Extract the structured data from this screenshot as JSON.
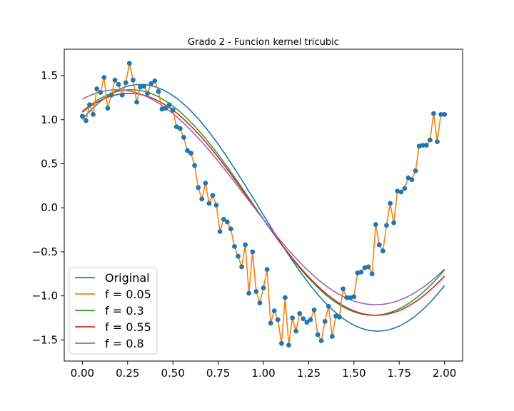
{
  "chart_data": {
    "type": "line",
    "title": "Grado 2 - Funcion kernel tricubic",
    "xlabel": "",
    "ylabel": "",
    "xlim": [
      -0.1,
      2.1
    ],
    "ylim": [
      -1.74,
      1.8
    ],
    "xticks": [
      {
        "value": 0.0,
        "label": "0.00"
      },
      {
        "value": 0.25,
        "label": "0.25"
      },
      {
        "value": 0.5,
        "label": "0.50"
      },
      {
        "value": 0.75,
        "label": "0.75"
      },
      {
        "value": 1.0,
        "label": "1.00"
      },
      {
        "value": 1.25,
        "label": "1.25"
      },
      {
        "value": 1.5,
        "label": "1.50"
      },
      {
        "value": 1.75,
        "label": "1.75"
      },
      {
        "value": 2.0,
        "label": "2.00"
      }
    ],
    "yticks": [
      {
        "value": -1.5,
        "label": "−1.5"
      },
      {
        "value": -1.0,
        "label": "−1.0"
      },
      {
        "value": -0.5,
        "label": "−0.5"
      },
      {
        "value": 0.0,
        "label": "0.0"
      },
      {
        "value": 0.5,
        "label": "0.5"
      },
      {
        "value": 1.0,
        "label": "1.0"
      },
      {
        "value": 1.5,
        "label": "1.5"
      }
    ],
    "grid": false,
    "legend_position": "lower-left",
    "x": [
      0.0,
      0.02,
      0.04,
      0.06,
      0.08,
      0.1,
      0.12,
      0.14,
      0.16,
      0.18,
      0.2,
      0.22,
      0.24,
      0.26,
      0.28,
      0.3,
      0.32,
      0.34,
      0.36,
      0.38,
      0.4,
      0.42,
      0.44,
      0.46,
      0.48,
      0.5,
      0.52,
      0.54,
      0.56,
      0.58,
      0.6,
      0.62,
      0.64,
      0.66,
      0.68,
      0.7,
      0.72,
      0.74,
      0.76,
      0.78,
      0.8,
      0.82,
      0.84,
      0.86,
      0.88,
      0.9,
      0.92,
      0.94,
      0.96,
      0.98,
      1.0,
      1.02,
      1.04,
      1.06,
      1.08,
      1.1,
      1.12,
      1.14,
      1.16,
      1.18,
      1.2,
      1.22,
      1.24,
      1.26,
      1.28,
      1.3,
      1.32,
      1.34,
      1.36,
      1.38,
      1.4,
      1.42,
      1.44,
      1.46,
      1.48,
      1.5,
      1.52,
      1.54,
      1.56,
      1.58,
      1.6,
      1.62,
      1.64,
      1.66,
      1.68,
      1.7,
      1.72,
      1.74,
      1.76,
      1.78,
      1.8,
      1.82,
      1.84,
      1.86,
      1.88,
      1.9,
      1.92,
      1.94,
      1.96,
      1.98,
      2.0
    ],
    "points": [
      1.04,
      0.99,
      1.17,
      1.06,
      1.35,
      1.31,
      1.48,
      1.13,
      1.28,
      1.45,
      1.4,
      1.28,
      1.42,
      1.64,
      1.45,
      1.2,
      1.37,
      1.38,
      1.3,
      1.41,
      1.44,
      1.32,
      1.12,
      1.13,
      1.17,
      1.11,
      0.92,
      0.9,
      0.8,
      0.65,
      0.62,
      0.48,
      0.23,
      0.1,
      0.28,
      0.05,
      0.14,
      0.03,
      -0.27,
      -0.13,
      -0.16,
      -0.24,
      -0.44,
      -0.55,
      -0.67,
      -0.42,
      -0.97,
      -0.5,
      -0.95,
      -1.08,
      -0.91,
      -0.7,
      -1.31,
      -1.17,
      -1.27,
      -1.54,
      -1.02,
      -1.56,
      -1.25,
      -1.4,
      -1.2,
      -1.26,
      -1.3,
      -1.27,
      -1.16,
      -1.44,
      -1.51,
      -1.29,
      -1.12,
      -1.46,
      -1.23,
      -1.24,
      -0.92,
      -1.02,
      -1.02,
      -1.01,
      -0.74,
      -0.73,
      -0.68,
      -0.67,
      -0.75,
      -0.19,
      -0.42,
      -0.49,
      -0.2,
      0.05,
      -0.17,
      0.19,
      0.18,
      0.22,
      0.34,
      0.32,
      0.42,
      0.7,
      0.71,
      0.71,
      0.77,
      1.07,
      0.75,
      1.06,
      1.06
    ],
    "series": [
      {
        "name": "Original",
        "color": "#1f77b4"
      },
      {
        "name": "f = 0.05",
        "color": "#ff7f0e"
      },
      {
        "name": "f = 0.3",
        "color": "#2ca02c"
      },
      {
        "name": "f = 0.55",
        "color": "#d62728"
      },
      {
        "name": "f = 0.8",
        "color": "#9467bd"
      }
    ],
    "points_color": "#1f77b4"
  }
}
